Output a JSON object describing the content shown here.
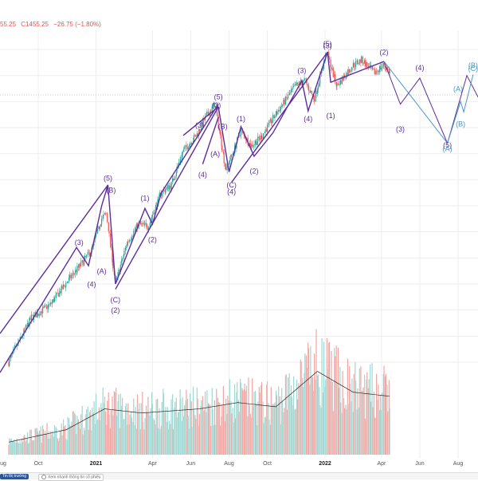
{
  "header": {
    "close_fragment": "55.25",
    "close_value": "C1455.25",
    "change": "−26.75 (−1.80%)"
  },
  "bottom_bar": {
    "market_button": "Tin thị trường",
    "search_button": "Xem nhanh thông tin cổ phiếu"
  },
  "colors": {
    "up": "#26a69a",
    "down": "#ef5350",
    "wave": "#5b2d9e",
    "projection": "#4a9ac7",
    "change_text": "#e05555",
    "volume_ma": "#222222",
    "grid": "#eeeeee"
  },
  "chart_data": {
    "type": "candlestick",
    "x_tick_labels": [
      "ug",
      "Oct",
      "2021",
      "Apr",
      "Jun",
      "Aug",
      "Oct",
      "2022",
      "Apr",
      "Jun",
      "Aug"
    ],
    "grid": true,
    "price_path": [
      [
        "2020-08-15",
        900
      ],
      [
        "2020-09-20",
        985
      ],
      [
        "2020-10-20",
        1010
      ],
      [
        "2020-11-20",
        1060
      ],
      [
        "2020-12-10",
        1090
      ],
      [
        "2020-12-25",
        1115
      ],
      [
        "2021-01-10",
        1175
      ],
      [
        "2021-01-18",
        1185
      ],
      [
        "2021-02-01",
        1050
      ],
      [
        "2021-02-20",
        1130
      ],
      [
        "2021-03-10",
        1165
      ],
      [
        "2021-03-25",
        1160
      ],
      [
        "2021-04-15",
        1225
      ],
      [
        "2021-05-01",
        1240
      ],
      [
        "2021-05-20",
        1305
      ],
      [
        "2021-06-10",
        1335
      ],
      [
        "2021-06-25",
        1370
      ],
      [
        "2021-07-10",
        1395
      ],
      [
        "2021-07-27",
        1270
      ],
      [
        "2021-08-10",
        1310
      ],
      [
        "2021-08-20",
        1345
      ],
      [
        "2021-09-05",
        1315
      ],
      [
        "2021-09-20",
        1330
      ],
      [
        "2021-10-20",
        1385
      ],
      [
        "2021-11-15",
        1430
      ],
      [
        "2021-11-30",
        1440
      ],
      [
        "2021-12-15",
        1405
      ],
      [
        "2022-01-04",
        1495
      ],
      [
        "2022-01-20",
        1430
      ],
      [
        "2022-02-15",
        1470
      ],
      [
        "2022-03-01",
        1480
      ],
      [
        "2022-03-20",
        1455
      ],
      [
        "2022-04-05",
        1470
      ],
      [
        "2022-04-15",
        1455
      ]
    ],
    "volume_path": [
      [
        "2020-08-15",
        30
      ],
      [
        "2020-11-15",
        60
      ],
      [
        "2021-01-15",
        110
      ],
      [
        "2021-03-15",
        100
      ],
      [
        "2021-06-15",
        110
      ],
      [
        "2021-08-15",
        125
      ],
      [
        "2021-10-15",
        115
      ],
      [
        "2021-12-20",
        200
      ],
      [
        "2022-02-15",
        150
      ],
      [
        "2022-04-15",
        140
      ]
    ],
    "waves": [
      {
        "kind": "impulse",
        "points": [
          [
            "2020-08-01",
            955
          ],
          [
            "2021-01-20",
            1240
          ]
        ]
      },
      {
        "kind": "impulse",
        "points": [
          [
            "2020-08-01",
            880
          ],
          [
            "2020-12-01",
            1120
          ],
          [
            "2020-12-20",
            1085
          ],
          [
            "2021-01-10",
            1200
          ],
          [
            "2021-01-20",
            1240
          ],
          [
            "2021-02-01",
            1050
          ],
          [
            "2021-03-20",
            1195
          ],
          [
            "2021-04-01",
            1165
          ],
          [
            "2021-04-15",
            1225
          ],
          [
            "2021-07-15",
            1395
          ]
        ]
      },
      {
        "kind": "impulse",
        "points": [
          [
            "2021-02-01",
            1040
          ],
          [
            "2021-07-15",
            1390
          ]
        ]
      },
      {
        "kind": "impulse",
        "points": [
          [
            "2021-05-20",
            1335
          ],
          [
            "2021-07-15",
            1390
          ]
        ]
      },
      {
        "kind": "impulse",
        "points": [
          [
            "2021-06-20",
            1280
          ],
          [
            "2021-07-15",
            1370
          ]
        ]
      },
      {
        "kind": "impulse",
        "points": [
          [
            "2021-07-15",
            1390
          ],
          [
            "2021-08-01",
            1265
          ],
          [
            "2021-08-20",
            1352
          ],
          [
            "2021-09-10",
            1295
          ],
          [
            "2021-10-10",
            1340
          ],
          [
            "2021-11-25",
            1440
          ],
          [
            "2021-12-05",
            1382
          ],
          [
            "2022-01-05",
            1495
          ],
          [
            "2022-01-10",
            1437
          ],
          [
            "2022-04-05",
            1477
          ]
        ]
      },
      {
        "kind": "impulse",
        "points": [
          [
            "2021-08-05",
            1245
          ],
          [
            "2022-01-05",
            1495
          ]
        ]
      },
      {
        "kind": "projection",
        "points": [
          [
            "2022-04-05",
            1477
          ],
          [
            "2022-05-01",
            1395
          ],
          [
            "2022-06-01",
            1445
          ],
          [
            "2022-07-15",
            1320
          ],
          [
            "2022-08-15",
            1450
          ],
          [
            "2022-09-15",
            1378
          ]
        ]
      },
      {
        "kind": "projection_alt",
        "points": [
          [
            "2022-04-05",
            1477
          ],
          [
            "2022-07-15",
            1320
          ],
          [
            "2022-08-05",
            1400
          ],
          [
            "2022-08-10",
            1380
          ],
          [
            "2022-08-25",
            1452
          ]
        ]
      }
    ],
    "wave_labels": [
      {
        "text": "(3)",
        "date": "2020-12-05",
        "price": 1125
      },
      {
        "text": "(4)",
        "date": "2020-12-25",
        "price": 1045
      },
      {
        "text": "(5)",
        "date": "2021-01-20",
        "price": 1248
      },
      {
        "text": "(B)",
        "date": "2021-01-25",
        "price": 1225
      },
      {
        "text": "(A)",
        "date": "2021-01-10",
        "price": 1070
      },
      {
        "text": "(C)",
        "date": "2021-02-01",
        "price": 1015
      },
      {
        "text": "(2)",
        "date": "2021-02-01",
        "price": 995
      },
      {
        "text": "(1)",
        "date": "2021-03-20",
        "price": 1210
      },
      {
        "text": "(2)",
        "date": "2021-04-01",
        "price": 1130
      },
      {
        "text": "(3)",
        "date": "2021-06-15",
        "price": 1350
      },
      {
        "text": "(4)",
        "date": "2021-06-20",
        "price": 1255
      },
      {
        "text": "(5)",
        "date": "2021-07-15",
        "price": 1404
      },
      {
        "text": "(3)",
        "date": "2021-07-12",
        "price": 1388
      },
      {
        "text": "(B)",
        "date": "2021-07-22",
        "price": 1348
      },
      {
        "text": "(A)",
        "date": "2021-07-10",
        "price": 1295
      },
      {
        "text": "(C)",
        "date": "2021-08-05",
        "price": 1235
      },
      {
        "text": "(4)",
        "date": "2021-08-05",
        "price": 1222
      },
      {
        "text": "(1)",
        "date": "2021-08-20",
        "price": 1362
      },
      {
        "text": "(2)",
        "date": "2021-09-10",
        "price": 1262
      },
      {
        "text": "(3)",
        "date": "2021-11-25",
        "price": 1455
      },
      {
        "text": "(4)",
        "date": "2021-12-05",
        "price": 1362
      },
      {
        "text": "(5)",
        "date": "2022-01-05",
        "price": 1506
      },
      {
        "text": "(3)",
        "date": "2022-01-05",
        "price": 1502
      },
      {
        "text": "(1)",
        "date": "2022-01-10",
        "price": 1368
      },
      {
        "text": "(2)",
        "date": "2022-04-05",
        "price": 1490
      },
      {
        "text": "(3)",
        "date": "2022-05-01",
        "price": 1342
      },
      {
        "text": "(4)",
        "date": "2022-06-01",
        "price": 1460
      },
      {
        "text": "(5)",
        "date": "2022-07-15",
        "price": 1312
      },
      {
        "text": "(A)",
        "date": "2022-07-15",
        "price": 1305
      },
      {
        "text": "(B)",
        "date": "2022-08-05",
        "price": 1352
      },
      {
        "text": "(A)",
        "date": "2022-08-01",
        "price": 1420
      },
      {
        "text": "(B)",
        "date": "2022-08-25",
        "price": 1465
      },
      {
        "text": "(C)",
        "date": "2022-08-25",
        "price": 1459
      }
    ]
  }
}
